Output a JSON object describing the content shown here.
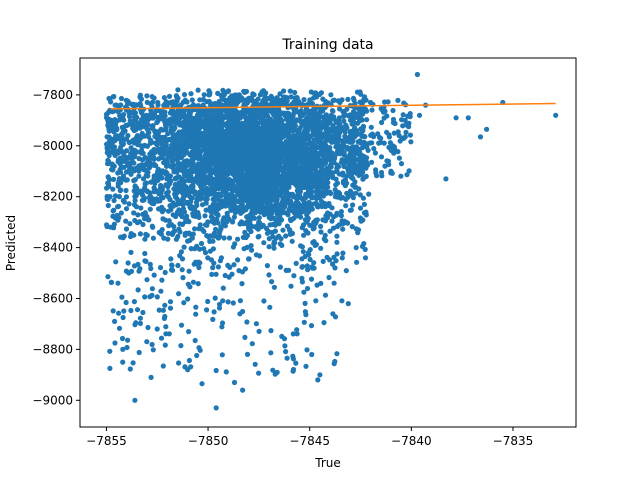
{
  "chart_data": {
    "type": "scatter",
    "title": "Training data",
    "xlabel": "True",
    "ylabel": "Predicted",
    "xlim": [
      -7856.3,
      -7831.9
    ],
    "ylim": [
      -9105,
      -7655
    ],
    "xticks": [
      -7855,
      -7850,
      -7845,
      -7840,
      -7835
    ],
    "yticks": [
      -9000,
      -8800,
      -8600,
      -8400,
      -8200,
      -8000,
      -7800
    ],
    "xtick_labels": [
      "−7855",
      "−7850",
      "−7845",
      "−7840",
      "−7835"
    ],
    "ytick_labels": [
      "−9000",
      "−8800",
      "−8600",
      "−8400",
      "−8200",
      "−8000",
      "−7800"
    ],
    "grid": false,
    "legend": "none",
    "series": [
      {
        "kind": "scatter",
        "color": "#1f77b4",
        "points": [
          [
            -7854.6,
            -8690
          ],
          [
            -7854.2,
            -8850
          ],
          [
            -7853.6,
            -9000
          ],
          [
            -7853.9,
            -8500
          ],
          [
            -7852.8,
            -8910
          ],
          [
            -7852.5,
            -8720
          ],
          [
            -7851.0,
            -8880
          ],
          [
            -7850.3,
            -8935
          ],
          [
            -7849.6,
            -9030
          ],
          [
            -7848.7,
            -8930
          ],
          [
            -7848.3,
            -8960
          ],
          [
            -7846.6,
            -8890
          ],
          [
            -7844.6,
            -8920
          ],
          [
            -7844.5,
            -8900
          ],
          [
            -7844.9,
            -8820
          ],
          [
            -7843.8,
            -8540
          ],
          [
            -7843.1,
            -8620
          ],
          [
            -7842.6,
            -8330
          ],
          [
            -7842.1,
            -8190
          ],
          [
            -7841.0,
            -8100
          ],
          [
            -7840.9,
            -8000
          ],
          [
            -7840.6,
            -7960
          ],
          [
            -7840.3,
            -7900
          ],
          [
            -7839.6,
            -7880
          ],
          [
            -7839.3,
            -7840
          ],
          [
            -7839.7,
            -7720
          ],
          [
            -7838.3,
            -8130
          ],
          [
            -7837.8,
            -7890
          ],
          [
            -7837.2,
            -7890
          ],
          [
            -7836.6,
            -7965
          ],
          [
            -7836.3,
            -7935
          ],
          [
            -7835.5,
            -7830
          ],
          [
            -7832.9,
            -7880
          ]
        ]
      },
      {
        "kind": "line",
        "color": "#ff7f0e",
        "points": [
          [
            -7854.8,
            -7855
          ],
          [
            -7832.9,
            -7834
          ]
        ]
      }
    ]
  }
}
